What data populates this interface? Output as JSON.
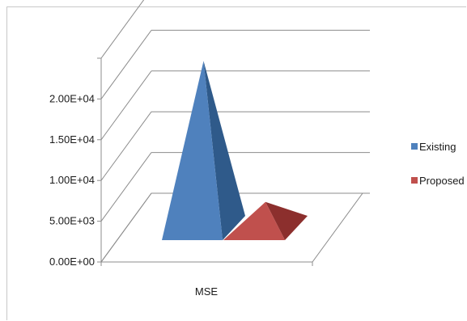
{
  "chart_data": {
    "type": "bar",
    "style": "3d-pyramid",
    "categories": [
      "MSE"
    ],
    "series": [
      {
        "name": "Existing",
        "values": [
          20500
        ],
        "color": "#4f81bd",
        "side_color": "#2f5a8a"
      },
      {
        "name": "Proposed",
        "values": [
          3200
        ],
        "color": "#c0504d",
        "side_color": "#8c2f2d"
      }
    ],
    "ylim": [
      0,
      25000
    ],
    "yticks": [
      0,
      5000,
      10000,
      15000,
      20000,
      25000
    ],
    "ytick_labels": [
      "0.00E+00",
      "5.00E+03",
      "1.00E+04",
      "1.50E+04",
      "2.00E+04",
      ""
    ],
    "grid": true,
    "legend_position": "right"
  }
}
